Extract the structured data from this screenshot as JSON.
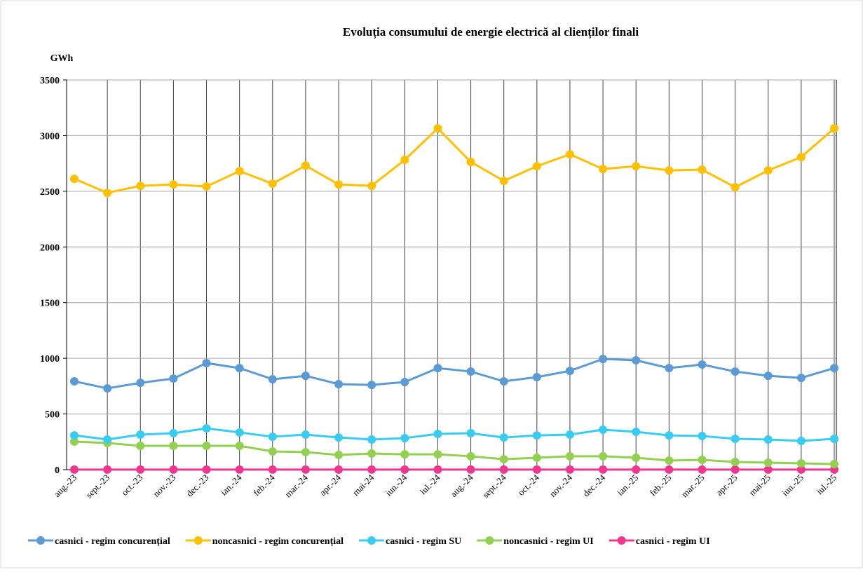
{
  "chart_data": {
    "type": "line",
    "title": "Evoluția consumului de energie electrică al clienților finali",
    "y_label": "GWh",
    "categories": [
      "aug.-23",
      "sept.-23",
      "oct.-23",
      "nov.-23",
      "dec.-23",
      "ian.-24",
      "feb.-24",
      "mar.-24",
      "apr.-24",
      "mai-24",
      "iun.-24",
      "iul.-24",
      "aug.-24",
      "sept.-24",
      "oct.-24",
      "nov.-24",
      "dec.-24",
      "ian.-25",
      "feb.-25",
      "mar.-25",
      "apr.-25",
      "mai-25",
      "iun.-25",
      "iul.-25"
    ],
    "series": [
      {
        "name": "casnici - regim concurențial",
        "color": "#5b9bd5",
        "values": [
          793,
          730,
          780,
          818,
          957,
          912,
          812,
          843,
          768,
          761,
          787,
          912,
          881,
          793,
          831,
          887,
          994,
          982,
          912,
          944,
          881,
          843,
          824,
          912
        ]
      },
      {
        "name": "noncasnici - regim concurențial",
        "color": "#ffc000",
        "values": [
          2612,
          2486,
          2549,
          2561,
          2543,
          2681,
          2568,
          2731,
          2561,
          2549,
          2782,
          3065,
          2763,
          2593,
          2725,
          2832,
          2700,
          2725,
          2687,
          2694,
          2536,
          2687,
          2807,
          3065
        ]
      },
      {
        "name": "casnici - regim SU",
        "color": "#38ccf2",
        "values": [
          308,
          271,
          315,
          327,
          371,
          334,
          296,
          315,
          289,
          271,
          283,
          321,
          327,
          289,
          308,
          315,
          359,
          340,
          308,
          302,
          277,
          271,
          258,
          277
        ]
      },
      {
        "name": "noncasnici - regim UI",
        "color": "#92d050",
        "values": [
          252,
          239,
          214,
          214,
          214,
          214,
          164,
          157,
          132,
          145,
          138,
          138,
          120,
          94,
          107,
          120,
          120,
          107,
          82,
          88,
          69,
          63,
          57,
          50
        ]
      },
      {
        "name": "casnici - regim UI",
        "color": "#f0368f",
        "values": [
          1,
          1,
          1,
          1,
          1,
          1,
          1,
          1,
          1,
          1,
          1,
          1,
          1,
          1,
          1,
          1,
          1,
          1,
          1,
          1,
          1,
          1,
          1,
          1
        ]
      }
    ],
    "ylim": [
      0,
      3500
    ],
    "yticks": [
      0,
      500,
      1000,
      1500,
      2000,
      2500,
      3000,
      3500
    ],
    "grid": true,
    "legend": "bottom"
  }
}
